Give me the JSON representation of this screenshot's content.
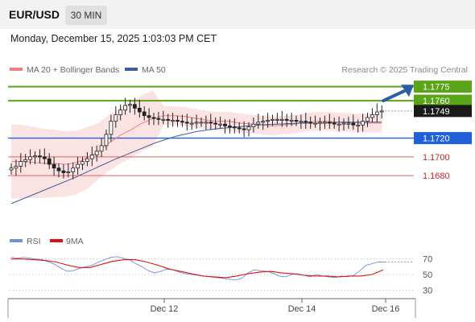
{
  "header": {
    "symbol": "EUR/USD",
    "timeframe": "30 MIN",
    "timestamp": "Monday, December 15, 2025 1:03:03 PM CET"
  },
  "legend": {
    "ma20_label": "MA 20 + Bollinger Bands",
    "ma50_label": "MA 50",
    "copyright": "Research © 2025 Trading Central",
    "ma20_color": "#f08080",
    "ma50_color": "#3a5f9e"
  },
  "rsi_legend": {
    "rsi_label": "RSI",
    "ma_label": "9MA",
    "rsi_color": "#6f8fd8",
    "ma_color": "#dd1111"
  },
  "colors": {
    "resistance": "#5aa417",
    "pivot": "#2060d8",
    "support": "#e06060",
    "candle": "#222222"
  },
  "chart_data": [
    {
      "type": "candlestick",
      "title": "EUR/USD",
      "ylim": [
        1.1625,
        1.1785
      ],
      "x_ticks": [
        "Dec 12",
        "Dec 14",
        "Dec 16"
      ],
      "current_price": "1.1749",
      "levels": [
        {
          "value": 1.1775,
          "label": "1.1775",
          "role": "resistance"
        },
        {
          "value": 1.176,
          "label": "1.1760",
          "role": "resistance"
        },
        {
          "value": 1.172,
          "label": "1.1720",
          "role": "pivot"
        },
        {
          "value": 1.17,
          "label": "1.1700",
          "role": "support"
        },
        {
          "value": 1.168,
          "label": "1.1680",
          "role": "support"
        }
      ],
      "close_series_approx": [
        1.1688,
        1.169,
        1.1695,
        1.1697,
        1.17,
        1.1701,
        1.17,
        1.1698,
        1.1692,
        1.1688,
        1.1685,
        1.1683,
        1.1684,
        1.1688,
        1.1692,
        1.1695,
        1.1698,
        1.1702,
        1.1706,
        1.1712,
        1.1724,
        1.1738,
        1.1745,
        1.175,
        1.1755,
        1.1756,
        1.1752,
        1.1748,
        1.1744,
        1.1742,
        1.1741,
        1.174,
        1.174,
        1.1739,
        1.1739,
        1.1738,
        1.1737,
        1.1736,
        1.1736,
        1.1737,
        1.1737,
        1.1737,
        1.1736,
        1.1735,
        1.1735,
        1.1733,
        1.1732,
        1.1731,
        1.173,
        1.1729,
        1.1732,
        1.1735,
        1.1737,
        1.1738,
        1.1739,
        1.174,
        1.174,
        1.174,
        1.1739,
        1.1739,
        1.1738,
        1.1738,
        1.1737,
        1.1736,
        1.1736,
        1.1737,
        1.1737,
        1.1736,
        1.1735,
        1.1735,
        1.1736,
        1.1736,
        1.1734,
        1.1734,
        1.1738,
        1.1742,
        1.1745,
        1.1748,
        1.1749
      ],
      "ma20_approx": [
        1.1695,
        1.1695,
        1.1694,
        1.1693,
        1.1693,
        1.1692,
        1.1694,
        1.1699,
        1.1706,
        1.1715,
        1.1723,
        1.1729,
        1.1736,
        1.1741,
        1.1744,
        1.1744,
        1.1743,
        1.1741,
        1.1739,
        1.1738,
        1.1738,
        1.1736,
        1.1735,
        1.1734,
        1.1733,
        1.1734,
        1.1735,
        1.1737,
        1.1738,
        1.1738,
        1.1737,
        1.1737,
        1.1736,
        1.1736,
        1.1736
      ],
      "ma50_approx": [
        1.165,
        1.1659,
        1.1668,
        1.1677,
        1.1687,
        1.1697,
        1.1706,
        1.1715,
        1.1722,
        1.1727,
        1.173,
        1.1732,
        1.1734,
        1.1735,
        1.1736,
        1.1736,
        1.1737,
        1.1737,
        1.1737
      ]
    },
    {
      "type": "line",
      "title": "RSI",
      "ylim": [
        20,
        80
      ],
      "y_ticks": [
        30,
        50,
        70
      ],
      "series": [
        {
          "name": "RSI",
          "values": [
            72,
            71,
            72,
            71,
            70,
            69,
            66,
            63,
            58,
            54,
            55,
            58,
            60,
            62,
            66,
            69,
            72,
            73,
            71,
            69,
            64,
            60,
            55,
            52,
            54,
            57,
            56,
            53,
            51,
            50,
            49,
            48,
            47,
            46,
            45,
            44,
            43,
            45,
            52,
            56,
            55,
            54,
            52,
            48,
            47,
            50,
            51,
            49,
            47,
            50,
            48,
            47,
            46,
            48,
            47,
            49,
            55,
            62,
            64,
            66,
            66
          ]
        },
        {
          "name": "9MA",
          "values": [
            70,
            70,
            69,
            68,
            66,
            62,
            59,
            59,
            63,
            67,
            69,
            69,
            66,
            62,
            57,
            54,
            51,
            48,
            47,
            46,
            48,
            51,
            53,
            54,
            52,
            51,
            49,
            48,
            48,
            47,
            48,
            48,
            50,
            56
          ]
        }
      ]
    }
  ]
}
